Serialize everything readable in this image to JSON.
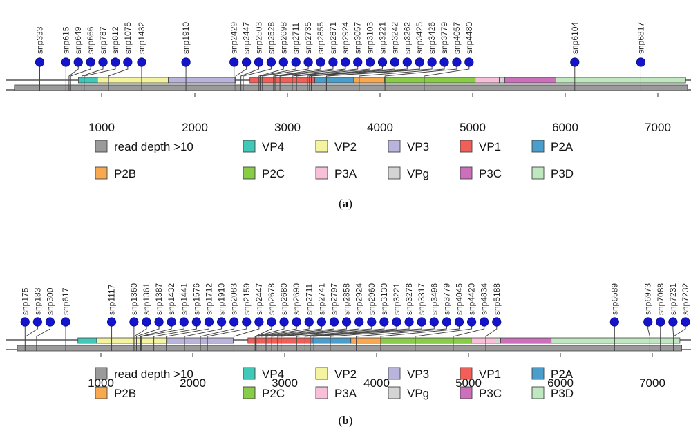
{
  "panels": [
    {
      "id": "a",
      "caption": "a",
      "snps": [
        {
          "label": "snp333",
          "pos": 333
        },
        {
          "label": "snp615",
          "pos": 615
        },
        {
          "label": "snp649",
          "pos": 649
        },
        {
          "label": "snp666",
          "pos": 666
        },
        {
          "label": "snp787",
          "pos": 787
        },
        {
          "label": "snp812",
          "pos": 812
        },
        {
          "label": "snp1075",
          "pos": 1075
        },
        {
          "label": "snp1432",
          "pos": 1432
        },
        {
          "label": "snp1910",
          "pos": 1910
        },
        {
          "label": "snp2429",
          "pos": 2429
        },
        {
          "label": "snp2447",
          "pos": 2447
        },
        {
          "label": "snp2503",
          "pos": 2503
        },
        {
          "label": "snp2528",
          "pos": 2528
        },
        {
          "label": "snp2698",
          "pos": 2698
        },
        {
          "label": "snp2711",
          "pos": 2711
        },
        {
          "label": "snp2735",
          "pos": 2735
        },
        {
          "label": "snp2855",
          "pos": 2855
        },
        {
          "label": "snp2871",
          "pos": 2871
        },
        {
          "label": "snp2924",
          "pos": 2924
        },
        {
          "label": "snp3057",
          "pos": 3057
        },
        {
          "label": "snp3103",
          "pos": 3103
        },
        {
          "label": "snp3221",
          "pos": 3221
        },
        {
          "label": "snp3242",
          "pos": 3242
        },
        {
          "label": "snp3262",
          "pos": 3262
        },
        {
          "label": "snp3425",
          "pos": 3425
        },
        {
          "label": "snp3426",
          "pos": 3426
        },
        {
          "label": "snp3779",
          "pos": 3779
        },
        {
          "label": "snp4057",
          "pos": 4057
        },
        {
          "label": "snp4480",
          "pos": 4480
        },
        {
          "label": "snp6104",
          "pos": 6104
        },
        {
          "label": "snp6817",
          "pos": 6817
        }
      ]
    },
    {
      "id": "b",
      "caption": "b",
      "snps": [
        {
          "label": "snp175",
          "pos": 175
        },
        {
          "label": "snp183",
          "pos": 183
        },
        {
          "label": "snp300",
          "pos": 300
        },
        {
          "label": "snp617",
          "pos": 617
        },
        {
          "label": "snp1117",
          "pos": 1117
        },
        {
          "label": "snp1360",
          "pos": 1360
        },
        {
          "label": "snp1361",
          "pos": 1361
        },
        {
          "label": "snp1387",
          "pos": 1387
        },
        {
          "label": "snp1432",
          "pos": 1432
        },
        {
          "label": "snp1441",
          "pos": 1441
        },
        {
          "label": "snp1576",
          "pos": 1576
        },
        {
          "label": "snp1712",
          "pos": 1712
        },
        {
          "label": "snp1910",
          "pos": 1910
        },
        {
          "label": "snp2083",
          "pos": 2083
        },
        {
          "label": "snp2159",
          "pos": 2159
        },
        {
          "label": "snp2447",
          "pos": 2447
        },
        {
          "label": "snp2678",
          "pos": 2678
        },
        {
          "label": "snp2680",
          "pos": 2680
        },
        {
          "label": "snp2690",
          "pos": 2690
        },
        {
          "label": "snp2711",
          "pos": 2711
        },
        {
          "label": "snp2741",
          "pos": 2741
        },
        {
          "label": "snp2797",
          "pos": 2797
        },
        {
          "label": "snp2858",
          "pos": 2858
        },
        {
          "label": "snp2924",
          "pos": 2924
        },
        {
          "label": "snp2960",
          "pos": 2960
        },
        {
          "label": "snp3130",
          "pos": 3130
        },
        {
          "label": "snp3221",
          "pos": 3221
        },
        {
          "label": "snp3278",
          "pos": 3278
        },
        {
          "label": "snp3317",
          "pos": 3317
        },
        {
          "label": "snp3496",
          "pos": 3496
        },
        {
          "label": "snp3779",
          "pos": 3779
        },
        {
          "label": "snp4045",
          "pos": 4045
        },
        {
          "label": "snp4420",
          "pos": 4420
        },
        {
          "label": "snp4834",
          "pos": 4834
        },
        {
          "label": "snp5188",
          "pos": 5188
        },
        {
          "label": "snp6589",
          "pos": 6589
        },
        {
          "label": "snp6973",
          "pos": 6973
        },
        {
          "label": "snp7088",
          "pos": 7088
        },
        {
          "label": "snp7231",
          "pos": 7231
        },
        {
          "label": "snp7232",
          "pos": 7232
        }
      ]
    }
  ],
  "ticks": [
    {
      "label": "1000",
      "value": 1000
    },
    {
      "label": "2000",
      "value": 2000
    },
    {
      "label": "3000",
      "value": 3000
    },
    {
      "label": "4000",
      "value": 4000
    },
    {
      "label": "5000",
      "value": 5000
    },
    {
      "label": "6000",
      "value": 6000
    },
    {
      "label": "7000",
      "value": 7000
    }
  ],
  "genome_range": [
    0,
    7400
  ],
  "regions": [
    {
      "name": "VP4",
      "start": 750,
      "end": 955,
      "color": "#40c8b8"
    },
    {
      "name": "VP2",
      "start": 955,
      "end": 1720,
      "color": "#f4f4a0"
    },
    {
      "name": "VP3",
      "start": 1720,
      "end": 2440,
      "color": "#b8b4dc"
    },
    {
      "name": "VP1",
      "start": 2600,
      "end": 3300,
      "color": "#f06058"
    },
    {
      "name": "P2A",
      "start": 3300,
      "end": 3720,
      "color": "#4a9ecc"
    },
    {
      "name": "P2B",
      "start": 3720,
      "end": 4050,
      "color": "#f8a850"
    },
    {
      "name": "P2C",
      "start": 4050,
      "end": 5030,
      "color": "#88cc48"
    },
    {
      "name": "P3A",
      "start": 5030,
      "end": 5290,
      "color": "#f8c0d8"
    },
    {
      "name": "VPg",
      "start": 5290,
      "end": 5350,
      "color": "#d4d4d4"
    },
    {
      "name": "P3C",
      "start": 5350,
      "end": 5900,
      "color": "#cc70bc"
    },
    {
      "name": "P3D",
      "start": 5900,
      "end": 7300,
      "color": "#c0e8c0"
    }
  ],
  "read_depth_color": "#9a9a9a",
  "snp_color": "#1414cc",
  "legend": {
    "row1": [
      {
        "label": "read depth >10",
        "color": "#9a9a9a"
      },
      {
        "label": "VP4",
        "color": "#40c8b8"
      },
      {
        "label": "VP2",
        "color": "#f4f4a0"
      },
      {
        "label": "VP3",
        "color": "#b8b4dc"
      },
      {
        "label": "VP1",
        "color": "#f06058"
      },
      {
        "label": "P2A",
        "color": "#4a9ecc"
      }
    ],
    "row2": [
      {
        "label": "P2B",
        "color": "#f8a850"
      },
      {
        "label": "P2C",
        "color": "#88cc48"
      },
      {
        "label": "P3A",
        "color": "#f8c0d8"
      },
      {
        "label": "VPg",
        "color": "#d4d4d4"
      },
      {
        "label": "P3C",
        "color": "#cc70bc"
      },
      {
        "label": "P3D",
        "color": "#c0e8c0"
      }
    ]
  }
}
